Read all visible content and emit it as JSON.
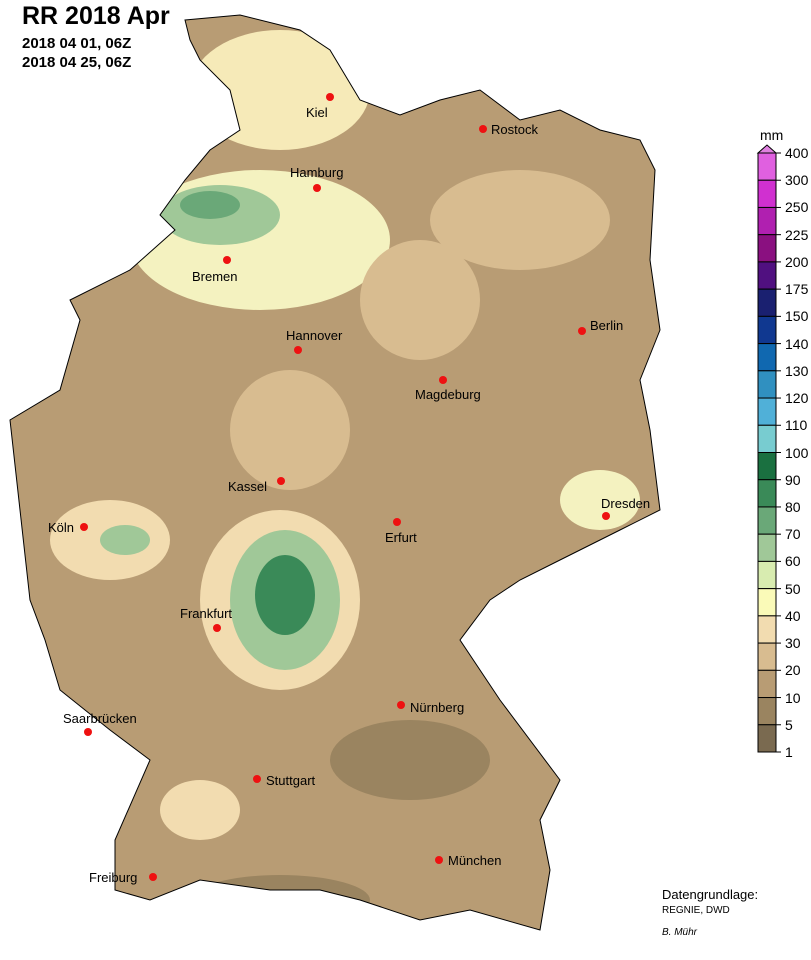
{
  "header": {
    "title": "RR 2018 Apr",
    "period_start": "2018 04 01, 06Z",
    "period_end": "2018 04 25, 06Z"
  },
  "colorbar": {
    "unit": "mm",
    "labels": [
      "400",
      "300",
      "250",
      "225",
      "200",
      "175",
      "150",
      "140",
      "130",
      "120",
      "110",
      "100",
      "90",
      "80",
      "70",
      "60",
      "50",
      "40",
      "30",
      "20",
      "10",
      "5",
      "1"
    ],
    "over_color": "#e080e0",
    "colors": [
      "#e060e0",
      "#d030d0",
      "#b020b0",
      "#8a1080",
      "#501080",
      "#1a2070",
      "#103890",
      "#1068b0",
      "#3090c0",
      "#50b0d8",
      "#78ccd0",
      "#1a7040",
      "#3a8a58",
      "#6aa878",
      "#a0c898",
      "#d8ecb0",
      "#fafab8",
      "#f2dcb0",
      "#d8bc90",
      "#b89c74",
      "#9a8460",
      "#7a6a50"
    ]
  },
  "cities": [
    {
      "name": "Kiel"
    },
    {
      "name": "Rostock"
    },
    {
      "name": "Hamburg"
    },
    {
      "name": "Bremen"
    },
    {
      "name": "Hannover"
    },
    {
      "name": "Berlin"
    },
    {
      "name": "Magdeburg"
    },
    {
      "name": "Kassel"
    },
    {
      "name": "Köln"
    },
    {
      "name": "Erfurt"
    },
    {
      "name": "Dresden"
    },
    {
      "name": "Frankfurt"
    },
    {
      "name": "Nürnberg"
    },
    {
      "name": "Saarbrücken"
    },
    {
      "name": "Stuttgart"
    },
    {
      "name": "Freiburg"
    },
    {
      "name": "München"
    }
  ],
  "city_marker_color": "#ee1111",
  "credits": {
    "heading": "Datengrundlage:",
    "source": "REGNIE, DWD",
    "author": "B. Mühr"
  }
}
